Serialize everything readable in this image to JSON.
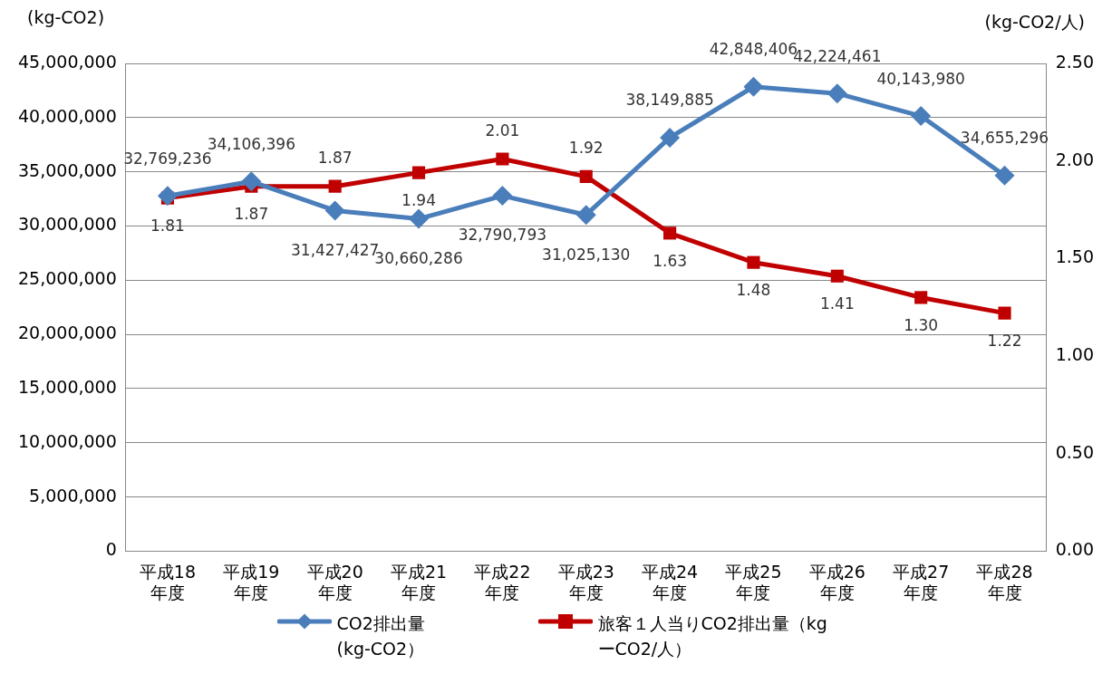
{
  "chart_data": {
    "type": "line",
    "ylabel": "(kg-CO2)",
    "y2label": "(kg-CO2/人)",
    "categories": [
      "平成18\n年度",
      "平成19\n年度",
      "平成20\n年度",
      "平成21\n年度",
      "平成22\n年度",
      "平成23\n年度",
      "平成24\n年度",
      "平成25\n年度",
      "平成26\n年度",
      "平成27\n年度",
      "平成28\n年度"
    ],
    "series": [
      {
        "name": "CO2排出量(kg-CO2）",
        "color": "#4a7ebb",
        "marker": "diamond",
        "values": [
          32769236,
          34106396,
          31427427,
          30660286,
          32790793,
          31025130,
          38149885,
          42848406,
          42224461,
          40143980,
          34655296
        ],
        "value_labels": [
          "32,769,236",
          "34,106,396",
          "31,427,427",
          "30,660,286",
          "32,790,793",
          "31,025,130",
          "38,149,885",
          "42,848,406",
          "42,224,461",
          "40,143,980",
          "34,655,296"
        ]
      },
      {
        "name": "旅客１人当りCO2排出量（kgーCO2/人）",
        "color": "#c00000",
        "marker": "square",
        "axis": "y2",
        "values": [
          1.81,
          1.87,
          1.87,
          1.94,
          2.01,
          1.92,
          1.63,
          1.48,
          1.41,
          1.3,
          1.22
        ],
        "value_labels": [
          "1.81",
          "1.87",
          "1.87",
          "1.94",
          "2.01",
          "1.92",
          "1.63",
          "1.48",
          "1.41",
          "1.30",
          "1.22"
        ]
      }
    ],
    "ylim": [
      0,
      45000000
    ],
    "yticks": [
      {
        "value": 0,
        "label": "0"
      },
      {
        "value": 5000000,
        "label": "5,000,000"
      },
      {
        "value": 10000000,
        "label": "10,000,000"
      },
      {
        "value": 15000000,
        "label": "15,000,000"
      },
      {
        "value": 20000000,
        "label": "20,000,000"
      },
      {
        "value": 25000000,
        "label": "25,000,000"
      },
      {
        "value": 30000000,
        "label": "30,000,000"
      },
      {
        "value": 35000000,
        "label": "35,000,000"
      },
      {
        "value": 40000000,
        "label": "40,000,000"
      },
      {
        "value": 45000000,
        "label": "45,000,000"
      }
    ],
    "y2lim": [
      0,
      2.5
    ],
    "y2ticks": [
      {
        "value": 0,
        "label": "0.00"
      },
      {
        "value": 0.5,
        "label": "0.50"
      },
      {
        "value": 1,
        "label": "1.00"
      },
      {
        "value": 1.5,
        "label": "1.50"
      },
      {
        "value": 2,
        "label": "2.00"
      },
      {
        "value": 2.5,
        "label": "2.50"
      }
    ],
    "grid": "y",
    "legend": "bottom"
  }
}
